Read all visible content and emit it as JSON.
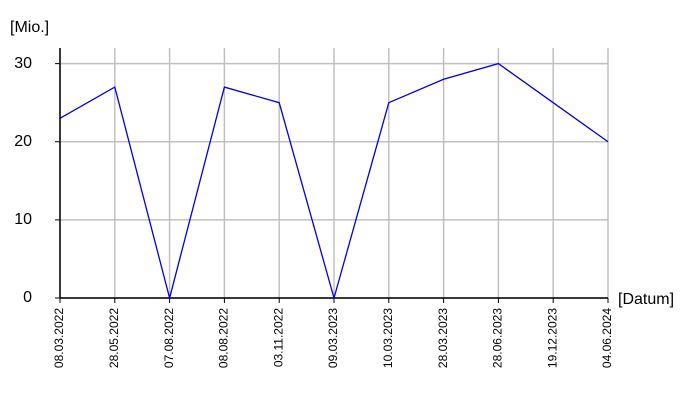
{
  "chart_data": {
    "type": "line",
    "y_label": "[Mio.]",
    "x_label": "[Datum]",
    "categories": [
      "08.03.2022",
      "28.05.2022",
      "07.08.2022",
      "08.08.2022",
      "03.11.2022",
      "09.03.2023",
      "10.03.2023",
      "28.03.2023",
      "28.06.2023",
      "19.12.2023",
      "04.06.2024"
    ],
    "values": [
      23,
      27,
      0,
      27,
      25,
      0,
      25,
      28,
      30,
      25,
      20
    ],
    "color": "#0000dd",
    "ylim": [
      0,
      32
    ],
    "yticks": [
      0,
      10,
      20,
      30
    ],
    "grid": true
  }
}
